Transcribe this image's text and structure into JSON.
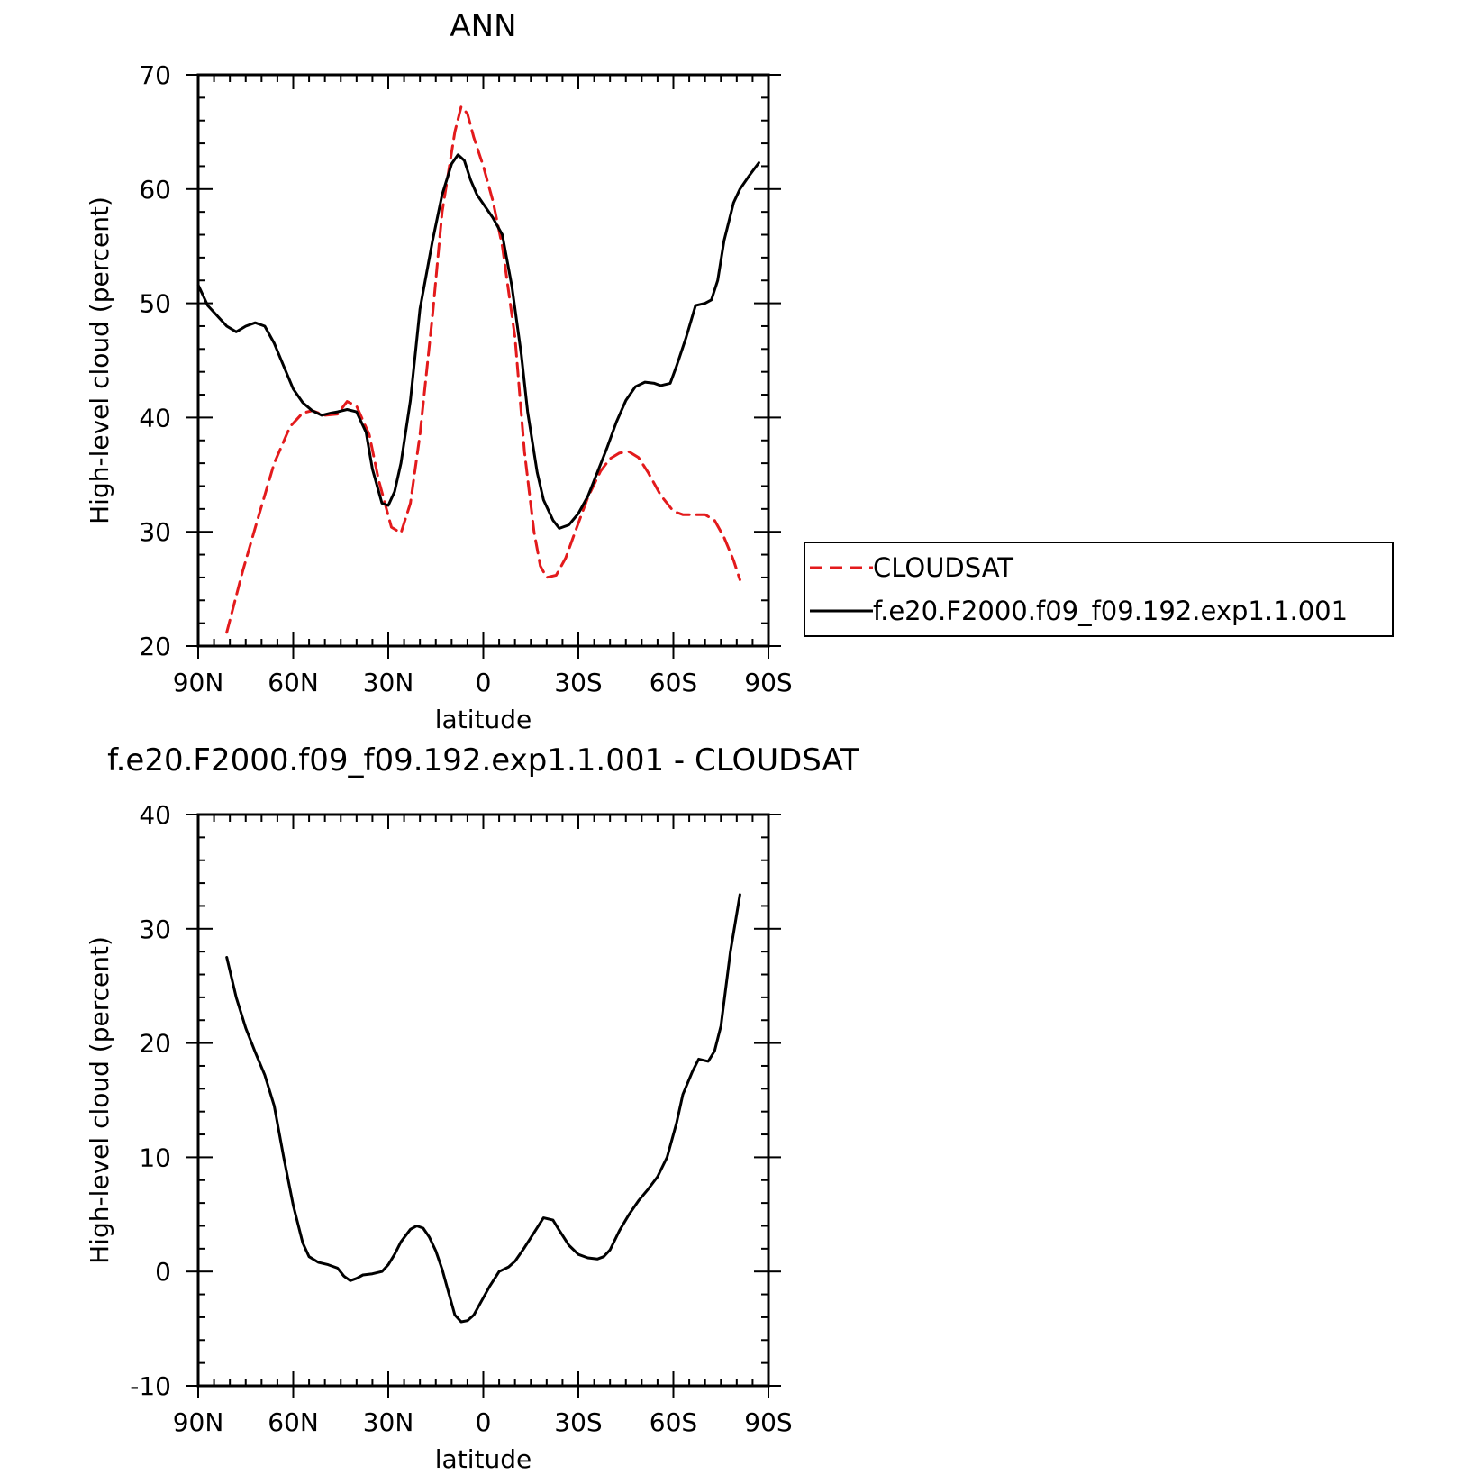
{
  "chart_data": [
    {
      "type": "line",
      "title": "ANN",
      "xlabel": "latitude",
      "ylabel": "High-level cloud (percent)",
      "xlim": [
        90,
        -90
      ],
      "ylim": [
        20,
        70
      ],
      "xticks": [
        90,
        60,
        30,
        0,
        -30,
        -60,
        -90
      ],
      "xtick_labels": [
        "90N",
        "60N",
        "30N",
        "0",
        "30S",
        "60S",
        "90S"
      ],
      "yticks": [
        20,
        30,
        40,
        50,
        60,
        70
      ],
      "ytick_labels": [
        "20",
        "30",
        "40",
        "50",
        "60",
        "70"
      ],
      "grid": false,
      "legend_position": "right",
      "series": [
        {
          "name": "CLOUDSAT",
          "color": "#e31a1c",
          "dash": "dashed",
          "x": [
            81,
            76,
            71,
            66,
            61,
            57,
            54,
            50,
            46,
            43,
            40,
            36,
            33,
            29,
            26,
            23,
            20,
            16,
            13,
            9,
            7,
            5,
            3,
            0,
            -3,
            -6,
            -10,
            -13,
            -16,
            -18,
            -20,
            -23,
            -26,
            -29,
            -33,
            -37,
            -40,
            -43,
            -46,
            -49,
            -52,
            -56,
            -60,
            -63,
            -66,
            -70,
            -73,
            -76,
            -79,
            -81
          ],
          "y": [
            21.2,
            26.5,
            31.3,
            36.0,
            39.2,
            40.4,
            40.6,
            40.2,
            40.3,
            41.4,
            41.0,
            38.5,
            34.5,
            30.4,
            29.9,
            32.5,
            38.5,
            49.0,
            58.0,
            65.0,
            67.2,
            66.6,
            64.5,
            62.0,
            59.0,
            55.0,
            47.0,
            37.0,
            30.0,
            27.0,
            26.0,
            26.2,
            27.7,
            30.0,
            33.0,
            35.3,
            36.4,
            36.9,
            37.0,
            36.5,
            35.2,
            33.2,
            31.8,
            31.5,
            31.5,
            31.5,
            31.0,
            29.5,
            27.5,
            25.8
          ]
        },
        {
          "name": "f.e20.F2000.f09_f09.192.exp1.1.001",
          "color": "#000000",
          "dash": "solid",
          "x": [
            90,
            87,
            84,
            81,
            78,
            75,
            72,
            69,
            66,
            63,
            60,
            57,
            54,
            51,
            48,
            46,
            43,
            40,
            37,
            35,
            32,
            30,
            28,
            26,
            23,
            20,
            16,
            13,
            10,
            8,
            6,
            4,
            2,
            0,
            -3,
            -6,
            -9,
            -12,
            -14,
            -17,
            -19,
            -22,
            -24,
            -27,
            -30,
            -33,
            -36,
            -39,
            -42,
            -45,
            -48,
            -51,
            -54,
            -56,
            -59,
            -61,
            -64,
            -67,
            -70,
            -72,
            -74,
            -76,
            -79,
            -81,
            -84,
            -87
          ],
          "y": [
            51.6,
            49.8,
            48.9,
            48.0,
            47.5,
            48.0,
            48.3,
            48.0,
            46.5,
            44.5,
            42.5,
            41.3,
            40.6,
            40.2,
            40.4,
            40.5,
            40.7,
            40.5,
            38.7,
            35.5,
            32.5,
            32.3,
            33.5,
            36.0,
            41.5,
            49.5,
            55.5,
            59.5,
            62.2,
            63.0,
            62.5,
            60.8,
            59.5,
            58.7,
            57.5,
            56.0,
            51.5,
            45.5,
            40.5,
            35.2,
            32.8,
            31.0,
            30.3,
            30.6,
            31.6,
            33.1,
            35.2,
            37.3,
            39.6,
            41.5,
            42.7,
            43.1,
            43.0,
            42.8,
            43.0,
            44.5,
            47.0,
            49.8,
            50.0,
            50.3,
            52.0,
            55.5,
            58.8,
            60.0,
            61.2,
            62.3
          ]
        }
      ]
    },
    {
      "type": "line",
      "title": "f.e20.F2000.f09_f09.192.exp1.1.001 - CLOUDSAT",
      "xlabel": "latitude",
      "ylabel": "High-level cloud (percent)",
      "xlim": [
        90,
        -90
      ],
      "ylim": [
        -10,
        40
      ],
      "xticks": [
        90,
        60,
        30,
        0,
        -30,
        -60,
        -90
      ],
      "xtick_labels": [
        "90N",
        "60N",
        "30N",
        "0",
        "30S",
        "60S",
        "90S"
      ],
      "yticks": [
        -10,
        0,
        10,
        20,
        30,
        40
      ],
      "ytick_labels": [
        "-10",
        "0",
        "10",
        "20",
        "30",
        "40"
      ],
      "grid": false,
      "series": [
        {
          "color": "#000000",
          "dash": "solid",
          "x": [
            81,
            78,
            75,
            72,
            69,
            66,
            63,
            60,
            57,
            55,
            52,
            49,
            46,
            44,
            42,
            40,
            38,
            35,
            32,
            30,
            28,
            26,
            23,
            21,
            19,
            17,
            15,
            13,
            11,
            9,
            7,
            5,
            3,
            1,
            -2,
            -5,
            -8,
            -10,
            -13,
            -16,
            -19,
            -22,
            -24,
            -27,
            -30,
            -33,
            -36,
            -38,
            -40,
            -43,
            -46,
            -49,
            -52,
            -55,
            -58,
            -61,
            -63,
            -66,
            -68,
            -71,
            -73,
            -75,
            -78,
            -81
          ],
          "y": [
            27.5,
            24.0,
            21.3,
            19.2,
            17.2,
            14.5,
            10.0,
            5.8,
            2.5,
            1.3,
            0.8,
            0.6,
            0.3,
            -0.4,
            -0.8,
            -0.6,
            -0.3,
            -0.2,
            0.0,
            0.6,
            1.5,
            2.6,
            3.7,
            4.0,
            3.8,
            3.0,
            1.8,
            0.2,
            -1.8,
            -3.8,
            -4.4,
            -4.3,
            -3.8,
            -2.8,
            -1.3,
            0.0,
            0.4,
            0.9,
            2.1,
            3.4,
            4.7,
            4.5,
            3.6,
            2.3,
            1.5,
            1.2,
            1.1,
            1.3,
            1.9,
            3.6,
            5.0,
            6.2,
            7.2,
            8.3,
            10.0,
            13.0,
            15.5,
            17.5,
            18.6,
            18.4,
            19.3,
            21.5,
            28.0,
            33.0
          ]
        }
      ]
    }
  ]
}
